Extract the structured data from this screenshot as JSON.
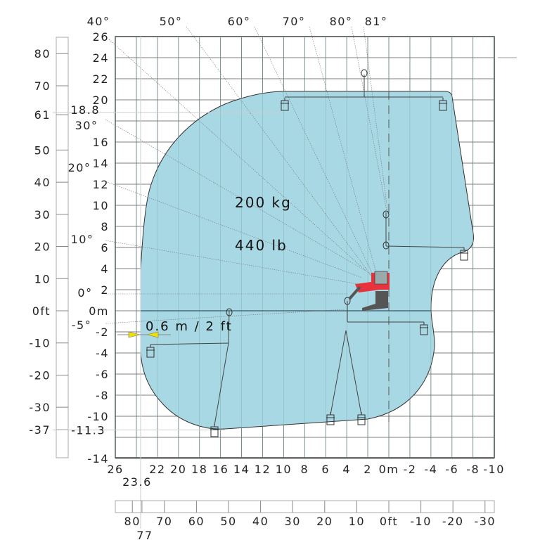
{
  "title": "",
  "load": {
    "kg": "200 kg",
    "lb": "440 lb"
  },
  "marker_label": "0.6 m / 2 ft",
  "colors": {
    "envelope": "#a8d8e4",
    "machine": "#e8323c",
    "marker": "#f2e000",
    "grid": "#555555"
  },
  "axes": {
    "x_m": {
      "range": [
        26,
        -10
      ],
      "labels": [
        {
          "v": 26,
          "t": "26"
        },
        {
          "v": 22,
          "t": "22"
        },
        {
          "v": 20,
          "t": "20"
        },
        {
          "v": 18,
          "t": "18"
        },
        {
          "v": 16,
          "t": "16"
        },
        {
          "v": 14,
          "t": "14"
        },
        {
          "v": 12,
          "t": "12"
        },
        {
          "v": 10,
          "t": "10"
        },
        {
          "v": 8,
          "t": "8"
        },
        {
          "v": 6,
          "t": "6"
        },
        {
          "v": 4,
          "t": "4"
        },
        {
          "v": 2,
          "t": "2"
        },
        {
          "v": 0,
          "t": "0m"
        },
        {
          "v": -2,
          "t": "-2"
        },
        {
          "v": -4,
          "t": "-4"
        },
        {
          "v": -6,
          "t": "-6"
        },
        {
          "v": -8,
          "t": "-8"
        },
        {
          "v": -10,
          "t": "-10"
        }
      ],
      "special": {
        "v": 23.6,
        "t": "23.6"
      }
    },
    "y_m": {
      "range": [
        -14,
        26
      ],
      "labels": [
        {
          "v": 26,
          "t": "26"
        },
        {
          "v": 24,
          "t": "24"
        },
        {
          "v": 22,
          "t": "22"
        },
        {
          "v": 20,
          "t": "20"
        },
        {
          "v": 16,
          "t": "16"
        },
        {
          "v": 14,
          "t": "14"
        },
        {
          "v": 12,
          "t": "12"
        },
        {
          "v": 10,
          "t": "10"
        },
        {
          "v": 8,
          "t": "8"
        },
        {
          "v": 6,
          "t": "6"
        },
        {
          "v": 4,
          "t": "4"
        },
        {
          "v": 2,
          "t": "2"
        },
        {
          "v": 0,
          "t": "0m"
        },
        {
          "v": -2,
          "t": "-2"
        },
        {
          "v": -4,
          "t": "-4"
        },
        {
          "v": -6,
          "t": "-6"
        },
        {
          "v": -8,
          "t": "-8"
        },
        {
          "v": -10,
          "t": "-10"
        },
        {
          "v": -14,
          "t": "-14"
        }
      ],
      "special": [
        {
          "v": 18.8,
          "t": "18.8"
        },
        {
          "v": -11.3,
          "t": "-11.3"
        }
      ]
    },
    "y_ft": {
      "labels": [
        {
          "v": 80,
          "t": "80"
        },
        {
          "v": 70,
          "t": "70"
        },
        {
          "v": 61,
          "t": "61"
        },
        {
          "v": 50,
          "t": "50"
        },
        {
          "v": 40,
          "t": "40"
        },
        {
          "v": 30,
          "t": "30"
        },
        {
          "v": 20,
          "t": "20"
        },
        {
          "v": 10,
          "t": "10"
        },
        {
          "v": 0,
          "t": "0ft"
        },
        {
          "v": -10,
          "t": "-10"
        },
        {
          "v": -20,
          "t": "-20"
        },
        {
          "v": -30,
          "t": "-30"
        },
        {
          "v": -37,
          "t": "-37"
        }
      ]
    },
    "x_ft": {
      "labels": [
        {
          "v": 80,
          "t": "80"
        },
        {
          "v": 77,
          "t": "77"
        },
        {
          "v": 70,
          "t": "70"
        },
        {
          "v": 60,
          "t": "60"
        },
        {
          "v": 50,
          "t": "50"
        },
        {
          "v": 40,
          "t": "40"
        },
        {
          "v": 30,
          "t": "30"
        },
        {
          "v": 20,
          "t": "20"
        },
        {
          "v": 10,
          "t": "10"
        },
        {
          "v": 0,
          "t": "0ft"
        },
        {
          "v": -10,
          "t": "-10"
        },
        {
          "v": -20,
          "t": "-20"
        },
        {
          "v": -30,
          "t": "-30"
        }
      ]
    }
  },
  "angles": [
    "40°",
    "50°",
    "60°",
    "70°",
    "80°",
    "81°",
    "30°",
    "20°",
    "10°",
    "0°",
    "-5°"
  ]
}
